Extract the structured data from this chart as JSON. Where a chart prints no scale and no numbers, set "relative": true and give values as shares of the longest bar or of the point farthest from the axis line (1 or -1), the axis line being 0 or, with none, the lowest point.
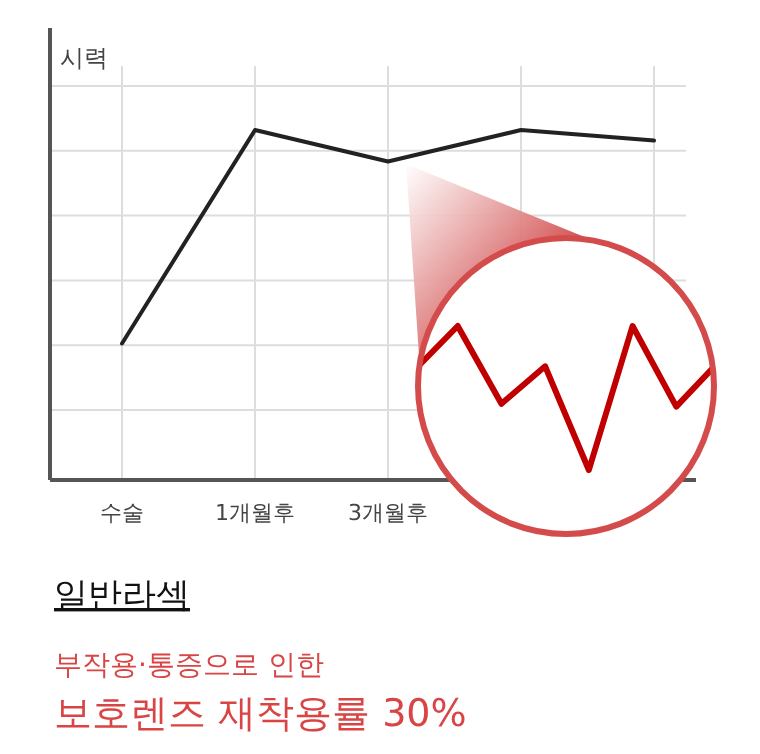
{
  "chart_data": [
    {
      "type": "line",
      "relative": true,
      "ylabel": "시력",
      "categories": [
        "수술",
        "1개월후",
        "3개월후",
        null,
        null
      ],
      "series": [
        {
          "color": "#222222",
          "values": [
            0.39,
            1,
            0.91,
            1,
            0.97
          ]
        }
      ],
      "grid": true,
      "marker": "none",
      "line_style": "solid",
      "title": "일반라섹",
      "subtitle": "부작용·통증으로 인한",
      "annotations": [
        "보호렌즈 재착용률 30%"
      ]
    },
    {
      "type": "line",
      "relative": true,
      "categories": [
        null,
        null,
        null,
        null,
        null,
        null,
        null,
        null
      ],
      "series": [
        {
          "color": "#c00000",
          "values": [
            0.69,
            1,
            0.46,
            0.72,
            0,
            1,
            0.44,
            0.76
          ]
        }
      ],
      "marker": "none",
      "line_style": "solid"
    }
  ]
}
